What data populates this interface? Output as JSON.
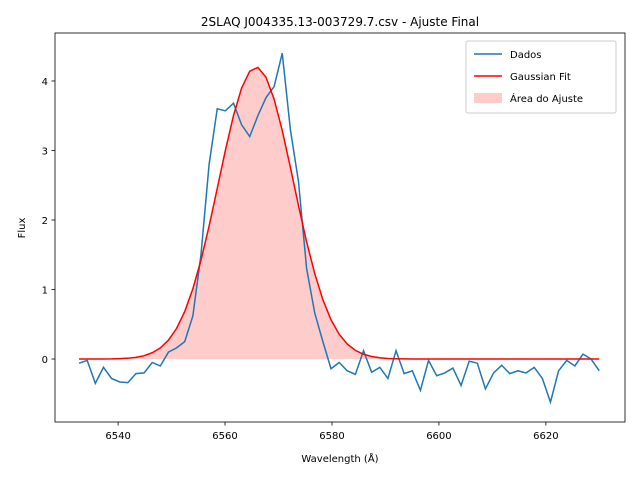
{
  "chart_data": {
    "type": "line",
    "title": "2SLAQ J004335.13-003729.7.csv - Ajuste Final",
    "x_label": "Wavelength (Å)",
    "y_label": "Flux",
    "x": [
      6532.7,
      6534.22,
      6535.74,
      6537.26,
      6538.78,
      6540.3,
      6541.82,
      6543.34,
      6544.86,
      6546.38,
      6547.9,
      6549.42,
      6550.94,
      6552.46,
      6553.98,
      6555.5,
      6557.02,
      6558.54,
      6560.06,
      6561.58,
      6563.1,
      6564.62,
      6566.14,
      6567.66,
      6569.18,
      6570.7,
      6572.22,
      6573.74,
      6575.26,
      6576.78,
      6578.3,
      6579.82,
      6581.34,
      6582.86,
      6584.38,
      6585.9,
      6587.42,
      6588.94,
      6590.46,
      6591.98,
      6593.5,
      6595.02,
      6596.54,
      6598.06,
      6599.58,
      6601.1,
      6602.62,
      6604.14,
      6605.66,
      6607.18,
      6608.7,
      6610.22,
      6611.74,
      6613.26,
      6614.78,
      6616.3,
      6617.82,
      6619.34,
      6620.86,
      6622.38,
      6623.9,
      6625.42,
      6626.94,
      6628.46,
      6629.98
    ],
    "series": [
      {
        "name": "Dados",
        "color": "#1f77b4",
        "values": [
          -0.06,
          -0.02,
          -0.35,
          -0.12,
          -0.28,
          -0.33,
          -0.34,
          -0.21,
          -0.2,
          -0.05,
          -0.1,
          0.1,
          0.16,
          0.25,
          0.62,
          1.5,
          2.8,
          3.6,
          3.57,
          3.68,
          3.37,
          3.2,
          3.5,
          3.76,
          3.92,
          4.4,
          3.3,
          2.55,
          1.3,
          0.66,
          0.25,
          -0.14,
          -0.05,
          -0.17,
          -0.22,
          0.12,
          -0.19,
          -0.12,
          -0.28,
          0.12,
          -0.21,
          -0.17,
          -0.45,
          -0.02,
          -0.24,
          -0.2,
          -0.13,
          -0.38,
          -0.03,
          -0.06,
          -0.43,
          -0.2,
          -0.09,
          -0.21,
          -0.17,
          -0.2,
          -0.12,
          -0.28,
          -0.62,
          -0.17,
          -0.02,
          -0.1,
          0.07,
          0.0,
          -0.17
        ]
      },
      {
        "name": "Gaussian Fit",
        "color": "#ff0000",
        "values": [
          0,
          0,
          0,
          0.001,
          0.002,
          0.006,
          0.012,
          0.024,
          0.048,
          0.09,
          0.16,
          0.272,
          0.441,
          0.683,
          1.009,
          1.422,
          1.913,
          2.453,
          3.001,
          3.502,
          3.899,
          4.141,
          4.195,
          4.054,
          3.738,
          3.287,
          2.758,
          2.207,
          1.685,
          1.227,
          0.853,
          0.565,
          0.357,
          0.215,
          0.124,
          0.068,
          0.036,
          0.018,
          0.008,
          0.004,
          0.002,
          0.001,
          0,
          0,
          0,
          0,
          0,
          0,
          0,
          0,
          0,
          0,
          0,
          0,
          0,
          0,
          0,
          0,
          0,
          0,
          0,
          0,
          0,
          0,
          0
        ]
      }
    ],
    "fill": {
      "name": "Área do Ajuste",
      "color": "#ffcccc"
    },
    "xlim": [
      6528.2,
      6634.8
    ],
    "ylim": [
      -0.906,
      4.69
    ],
    "xticks": [
      6540,
      6560,
      6580,
      6600,
      6620
    ],
    "yticks": [
      0,
      1,
      2,
      3,
      4
    ],
    "legend": "upper right"
  }
}
